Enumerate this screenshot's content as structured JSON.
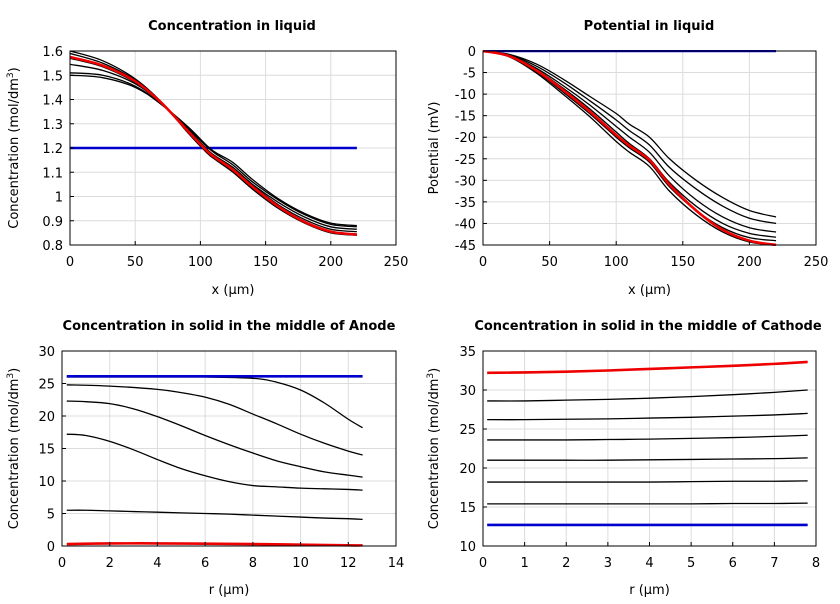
{
  "chart_data": [
    {
      "type": "line",
      "title": "Concentration in liquid",
      "xlabel": "x (µm)",
      "ylabel": "Concentration (mol/dm",
      "ylabel_sup": "3",
      "ylabel_end": ")",
      "xlim": [
        0,
        250
      ],
      "ylim": [
        0.8,
        1.6
      ],
      "xticks": [
        0,
        50,
        100,
        150,
        200,
        250
      ],
      "yticks": [
        0.8,
        0.9,
        1,
        1.1,
        1.2,
        1.3,
        1.4,
        1.5,
        1.6
      ],
      "xtick_labels": [
        "0",
        "50",
        "100",
        "150",
        "200",
        "250"
      ],
      "ytick_labels": [
        "0.8",
        "0.9",
        "1",
        "1.1",
        "1.2",
        "1.3",
        "1.4",
        "1.5",
        "1.6"
      ],
      "grid": true,
      "series": [
        {
          "color": "#0000cc",
          "width": 2.6,
          "x": [
            0,
            220
          ],
          "y": [
            1.2,
            1.2
          ]
        },
        {
          "color": "#000000",
          "width": 1.3,
          "x": [
            0,
            25,
            50,
            70,
            90,
            105,
            112,
            125,
            140,
            160,
            180,
            200,
            220
          ],
          "y": [
            1.5,
            1.49,
            1.45,
            1.38,
            1.29,
            1.21,
            1.18,
            1.14,
            1.07,
            0.99,
            0.93,
            0.89,
            0.88
          ]
        },
        {
          "color": "#000000",
          "width": 1.3,
          "x": [
            0,
            25,
            50,
            70,
            90,
            105,
            112,
            125,
            140,
            160,
            180,
            200,
            220
          ],
          "y": [
            1.51,
            1.5,
            1.455,
            1.38,
            1.285,
            1.205,
            1.175,
            1.13,
            1.06,
            0.985,
            0.925,
            0.885,
            0.875
          ]
        },
        {
          "color": "#000000",
          "width": 1.3,
          "x": [
            0,
            25,
            50,
            70,
            90,
            105,
            112,
            125,
            140,
            160,
            180,
            200,
            220
          ],
          "y": [
            1.545,
            1.52,
            1.465,
            1.385,
            1.28,
            1.195,
            1.165,
            1.12,
            1.05,
            0.975,
            0.915,
            0.875,
            0.865
          ]
        },
        {
          "color": "#000000",
          "width": 1.3,
          "x": [
            0,
            25,
            50,
            70,
            90,
            105,
            112,
            125,
            140,
            160,
            180,
            200,
            220
          ],
          "y": [
            1.57,
            1.535,
            1.47,
            1.385,
            1.275,
            1.19,
            1.16,
            1.11,
            1.045,
            0.965,
            0.905,
            0.865,
            0.855
          ]
        },
        {
          "color": "#000000",
          "width": 1.3,
          "x": [
            0,
            25,
            50,
            70,
            90,
            105,
            112,
            125,
            140,
            160,
            180,
            200,
            220
          ],
          "y": [
            1.59,
            1.55,
            1.48,
            1.39,
            1.27,
            1.185,
            1.155,
            1.105,
            1.035,
            0.955,
            0.895,
            0.855,
            0.845
          ]
        },
        {
          "color": "#000000",
          "width": 1.3,
          "x": [
            0,
            25,
            50,
            70,
            90,
            105,
            112,
            125,
            140,
            160,
            180,
            200,
            220
          ],
          "y": [
            1.6,
            1.56,
            1.485,
            1.39,
            1.265,
            1.18,
            1.15,
            1.1,
            1.03,
            0.95,
            0.89,
            0.85,
            0.84
          ]
        },
        {
          "color": "#ee0000",
          "width": 2.6,
          "x": [
            0,
            25,
            50,
            70,
            90,
            105,
            112,
            125,
            140,
            160,
            180,
            200,
            220
          ],
          "y": [
            1.575,
            1.54,
            1.475,
            1.387,
            1.272,
            1.188,
            1.158,
            1.11,
            1.04,
            0.958,
            0.895,
            0.855,
            0.843
          ]
        }
      ]
    },
    {
      "type": "line",
      "title": "Potential in liquid",
      "xlabel": "x (µm)",
      "ylabel": "Potential (mV)",
      "xlim": [
        0,
        250
      ],
      "ylim": [
        -45,
        0
      ],
      "xticks": [
        0,
        50,
        100,
        150,
        200,
        250
      ],
      "yticks": [
        0,
        -5,
        -10,
        -15,
        -20,
        -25,
        -30,
        -35,
        -40,
        -45
      ],
      "xtick_labels": [
        "0",
        "50",
        "100",
        "150",
        "200",
        "250"
      ],
      "ytick_labels": [
        "0",
        "-5",
        "-10",
        "-15",
        "-20",
        "-25",
        "-30",
        "-35",
        "-40",
        "-45"
      ],
      "grid": true,
      "series": [
        {
          "color": "#0000cc",
          "width": 2.6,
          "x": [
            0,
            220
          ],
          "y": [
            0,
            0
          ]
        },
        {
          "color": "#000000",
          "width": 1.3,
          "x": [
            0,
            20,
            40,
            60,
            80,
            100,
            110,
            125,
            140,
            160,
            180,
            200,
            220
          ],
          "y": [
            0,
            -0.8,
            -3,
            -6.5,
            -10.5,
            -14.5,
            -17,
            -20,
            -25,
            -30,
            -34,
            -37,
            -38.5
          ]
        },
        {
          "color": "#000000",
          "width": 1.3,
          "x": [
            0,
            20,
            40,
            60,
            80,
            100,
            110,
            125,
            140,
            160,
            180,
            200,
            220
          ],
          "y": [
            0,
            -0.9,
            -3.5,
            -7.2,
            -11.5,
            -16,
            -18.5,
            -21.8,
            -27,
            -32,
            -36,
            -38.8,
            -40
          ]
        },
        {
          "color": "#000000",
          "width": 1.3,
          "x": [
            0,
            20,
            40,
            60,
            80,
            100,
            110,
            125,
            140,
            160,
            180,
            200,
            220
          ],
          "y": [
            0,
            -1,
            -4,
            -8,
            -12.5,
            -17.5,
            -20,
            -23.5,
            -29,
            -34.5,
            -38.5,
            -41,
            -42
          ]
        },
        {
          "color": "#000000",
          "width": 1.3,
          "x": [
            0,
            20,
            40,
            60,
            80,
            100,
            110,
            125,
            140,
            160,
            180,
            200,
            220
          ],
          "y": [
            0,
            -1.1,
            -4.3,
            -8.6,
            -13.4,
            -18.8,
            -21.5,
            -25,
            -30.5,
            -36,
            -40,
            -42.3,
            -43.2
          ]
        },
        {
          "color": "#000000",
          "width": 1.3,
          "x": [
            0,
            20,
            40,
            60,
            80,
            100,
            110,
            125,
            140,
            160,
            180,
            200,
            220
          ],
          "y": [
            0,
            -1.3,
            -4.8,
            -9.5,
            -14.5,
            -20,
            -22.5,
            -25.8,
            -31.5,
            -37,
            -41,
            -43.3,
            -44
          ]
        },
        {
          "color": "#000000",
          "width": 1.3,
          "x": [
            0,
            20,
            40,
            60,
            80,
            100,
            110,
            125,
            140,
            160,
            180,
            200,
            220
          ],
          "y": [
            0,
            -1.4,
            -5.1,
            -10,
            -15.2,
            -21,
            -23.5,
            -26.8,
            -32.5,
            -38,
            -42,
            -44.3,
            -45
          ]
        },
        {
          "color": "#ee0000",
          "width": 2.6,
          "x": [
            0,
            20,
            40,
            60,
            80,
            100,
            110,
            125,
            140,
            160,
            180,
            200,
            220
          ],
          "y": [
            0,
            -1.2,
            -4.5,
            -9,
            -14,
            -19.5,
            -22,
            -25.3,
            -31,
            -37,
            -41.5,
            -44,
            -45
          ]
        }
      ]
    },
    {
      "type": "line",
      "title": "Concentration in solid in the middle of Anode",
      "xlabel": "r (µm)",
      "ylabel": "Concentration (mol/dm",
      "ylabel_sup": "3",
      "ylabel_end": ")",
      "xlim": [
        0,
        14
      ],
      "ylim": [
        0,
        30
      ],
      "xticks": [
        0,
        2,
        4,
        6,
        8,
        10,
        12,
        14
      ],
      "yticks": [
        0,
        5,
        10,
        15,
        20,
        25,
        30
      ],
      "xtick_labels": [
        "0",
        "2",
        "4",
        "6",
        "8",
        "10",
        "12",
        "14"
      ],
      "ytick_labels": [
        "0",
        "5",
        "10",
        "15",
        "20",
        "25",
        "30"
      ],
      "grid": true,
      "series": [
        {
          "color": "#000000",
          "width": 1.3,
          "x": [
            0.2,
            2,
            4,
            6,
            8,
            9,
            10,
            11,
            12,
            12.6
          ],
          "y": [
            26,
            26,
            26,
            26,
            25.8,
            25.2,
            24,
            22,
            19.5,
            18.2
          ]
        },
        {
          "color": "#000000",
          "width": 1.3,
          "x": [
            0.2,
            2,
            4,
            5,
            6,
            7,
            8,
            9,
            10,
            11,
            12,
            12.6
          ],
          "y": [
            24.8,
            24.6,
            24.1,
            23.6,
            22.9,
            21.8,
            20.3,
            18.8,
            17.2,
            15.8,
            14.6,
            14
          ]
        },
        {
          "color": "#000000",
          "width": 1.3,
          "x": [
            0.2,
            1,
            2,
            3,
            4,
            5,
            6,
            7,
            8,
            9,
            10,
            11,
            12,
            12.6
          ],
          "y": [
            22.3,
            22.2,
            21.9,
            21.1,
            19.9,
            18.5,
            17,
            15.6,
            14.3,
            13.1,
            12.2,
            11.4,
            10.9,
            10.6
          ]
        },
        {
          "color": "#000000",
          "width": 1.3,
          "x": [
            0.2,
            1,
            2,
            3,
            4,
            5,
            6,
            7,
            8,
            9,
            10,
            11,
            12,
            12.6
          ],
          "y": [
            17.2,
            17,
            16.1,
            14.8,
            13.3,
            11.9,
            10.8,
            9.9,
            9.3,
            9.1,
            8.9,
            8.8,
            8.7,
            8.6
          ]
        },
        {
          "color": "#000000",
          "width": 1.3,
          "x": [
            0.2,
            1,
            2,
            3,
            4,
            5,
            6,
            7,
            8,
            9,
            10,
            11,
            12,
            12.6
          ],
          "y": [
            5.5,
            5.5,
            5.4,
            5.3,
            5.2,
            5.1,
            5,
            4.9,
            4.75,
            4.6,
            4.45,
            4.3,
            4.2,
            4.1
          ]
        },
        {
          "color": "#0000cc",
          "width": 2.6,
          "x": [
            0.2,
            12.6
          ],
          "y": [
            26.1,
            26.1
          ]
        },
        {
          "color": "#ee0000",
          "width": 2.6,
          "x": [
            0.2,
            2,
            4,
            6,
            8,
            10,
            12,
            12.6
          ],
          "y": [
            0.3,
            0.4,
            0.4,
            0.35,
            0.3,
            0.2,
            0.1,
            0.1
          ]
        }
      ]
    },
    {
      "type": "line",
      "title": "Concentration in solid in the middle of Cathode",
      "xlabel": "r (µm)",
      "ylabel": "Concentration (mol/dm",
      "ylabel_sup": "3",
      "ylabel_end": ")",
      "xlim": [
        0,
        8
      ],
      "ylim": [
        10,
        35
      ],
      "xticks": [
        0,
        1,
        2,
        3,
        4,
        5,
        6,
        7,
        8
      ],
      "yticks": [
        10,
        15,
        20,
        25,
        30,
        35
      ],
      "xtick_labels": [
        "0",
        "1",
        "2",
        "3",
        "4",
        "5",
        "6",
        "7",
        "8"
      ],
      "ytick_labels": [
        "10",
        "15",
        "20",
        "25",
        "30",
        "35"
      ],
      "grid": true,
      "series": [
        {
          "color": "#ee0000",
          "width": 2.6,
          "x": [
            0.1,
            1,
            2,
            3,
            4,
            5,
            6,
            7,
            7.8
          ],
          "y": [
            32.2,
            32.25,
            32.35,
            32.5,
            32.7,
            32.9,
            33.1,
            33.35,
            33.6
          ]
        },
        {
          "color": "#000000",
          "width": 1.3,
          "x": [
            0.1,
            1,
            2,
            3,
            4,
            5,
            6,
            7,
            7.8
          ],
          "y": [
            28.6,
            28.6,
            28.7,
            28.8,
            28.95,
            29.15,
            29.4,
            29.7,
            30
          ]
        },
        {
          "color": "#000000",
          "width": 1.3,
          "x": [
            0.1,
            1,
            2,
            3,
            4,
            5,
            6,
            7,
            7.8
          ],
          "y": [
            26.2,
            26.2,
            26.25,
            26.3,
            26.4,
            26.5,
            26.65,
            26.8,
            27
          ]
        },
        {
          "color": "#000000",
          "width": 1.3,
          "x": [
            0.1,
            1,
            2,
            3,
            4,
            5,
            6,
            7,
            7.8
          ],
          "y": [
            23.6,
            23.6,
            23.6,
            23.65,
            23.7,
            23.8,
            23.9,
            24.05,
            24.2
          ]
        },
        {
          "color": "#000000",
          "width": 1.3,
          "x": [
            0.1,
            1,
            2,
            3,
            4,
            5,
            6,
            7,
            7.8
          ],
          "y": [
            21,
            21,
            21,
            21,
            21.05,
            21.1,
            21.15,
            21.2,
            21.3
          ]
        },
        {
          "color": "#000000",
          "width": 1.3,
          "x": [
            0.1,
            1,
            2,
            3,
            4,
            5,
            6,
            7,
            7.8
          ],
          "y": [
            18.2,
            18.2,
            18.2,
            18.2,
            18.2,
            18.25,
            18.3,
            18.3,
            18.35
          ]
        },
        {
          "color": "#000000",
          "width": 1.3,
          "x": [
            0.1,
            1,
            2,
            3,
            4,
            5,
            6,
            7,
            7.8
          ],
          "y": [
            15.4,
            15.4,
            15.4,
            15.4,
            15.4,
            15.4,
            15.45,
            15.45,
            15.5
          ]
        },
        {
          "color": "#0000cc",
          "width": 2.6,
          "x": [
            0.1,
            7.8
          ],
          "y": [
            12.7,
            12.7
          ]
        }
      ]
    }
  ]
}
